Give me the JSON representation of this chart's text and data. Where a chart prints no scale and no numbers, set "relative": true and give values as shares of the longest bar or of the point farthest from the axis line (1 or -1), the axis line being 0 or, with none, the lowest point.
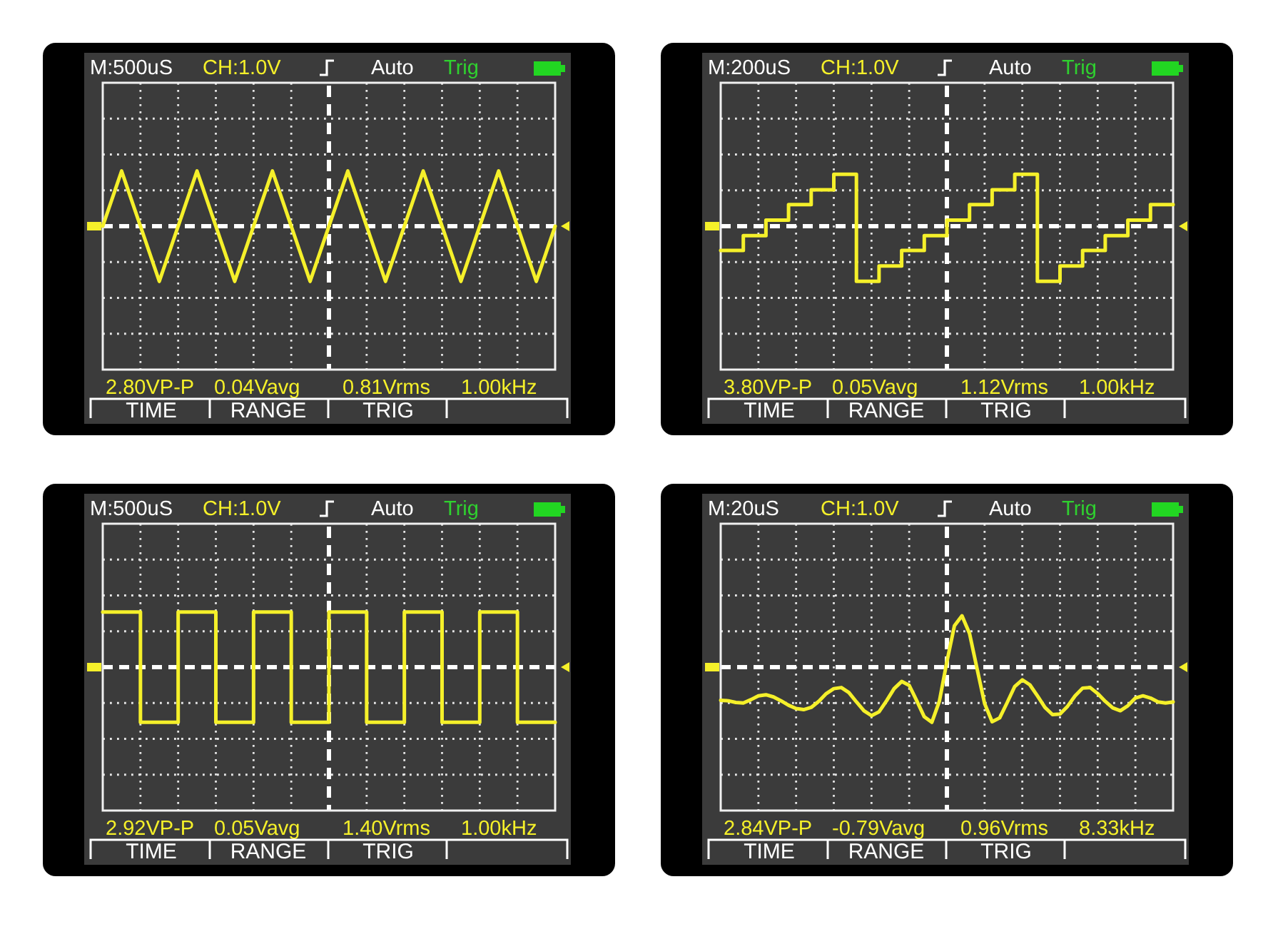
{
  "chart_data": [
    {
      "type": "line",
      "relative": true,
      "grid": true,
      "color": "#f5f02a",
      "ref_lines": [
        {
          "axis": "y",
          "value": 0,
          "color": "#ffffff",
          "line_style": "dashed"
        }
      ],
      "categories": [
        null,
        null,
        null,
        null,
        null,
        null,
        null,
        null,
        null,
        null,
        null,
        null,
        null,
        null,
        null,
        null,
        null,
        null,
        null,
        null,
        null,
        null,
        null,
        null,
        null
      ],
      "values": [
        0,
        1,
        0,
        -1,
        0,
        1,
        0,
        -1,
        0,
        1,
        0,
        -1,
        0,
        1,
        0,
        -1,
        0,
        1,
        0,
        -1,
        0,
        1,
        0,
        -1,
        0
      ],
      "annotations": [
        "M:500uS",
        "CH:1.0V",
        "Auto",
        "Trig",
        "2.80VP-P",
        "0.04Vavg",
        "0.81Vrms",
        "1.00kHz",
        "TIME",
        "RANGE",
        "TRIG"
      ]
    },
    {
      "type": "step",
      "relative": true,
      "grid": true,
      "color": "#f5f02a",
      "ref_lines": [
        {
          "axis": "y",
          "value": 0,
          "color": "#ffffff",
          "line_style": "dashed"
        }
      ],
      "categories": [
        null,
        null,
        null,
        null,
        null,
        null,
        null,
        null,
        null,
        null,
        null,
        null,
        null,
        null,
        null,
        null,
        null,
        null,
        null,
        null,
        null
      ],
      "values": [
        -0.44,
        -0.17,
        0.11,
        0.39,
        0.66,
        0.94,
        -1,
        -0.72,
        -0.44,
        -0.17,
        0.11,
        0.39,
        0.66,
        0.94,
        -1,
        -0.72,
        -0.44,
        -0.17,
        0.11,
        0.39,
        0.39
      ],
      "annotations": [
        "M:200uS",
        "CH:1.0V",
        "Auto",
        "Trig",
        "3.80VP-P",
        "0.05Vavg",
        "1.12Vrms",
        "1.00kHz",
        "TIME",
        "RANGE",
        "TRIG"
      ]
    },
    {
      "type": "step",
      "relative": true,
      "grid": true,
      "color": "#f5f02a",
      "ref_lines": [
        {
          "axis": "y",
          "value": 0,
          "color": "#ffffff",
          "line_style": "dashed"
        }
      ],
      "categories": [
        null,
        null,
        null,
        null,
        null,
        null,
        null,
        null,
        null,
        null,
        null,
        null,
        null
      ],
      "values": [
        1,
        -1,
        1,
        -1,
        1,
        -1,
        1,
        -1,
        1,
        -1,
        1,
        -1,
        -1
      ],
      "annotations": [
        "M:500uS",
        "CH:1.0V",
        "Auto",
        "Trig",
        "2.92VP-P",
        "0.05Vavg",
        "1.40Vrms",
        "1.00kHz",
        "TIME",
        "RANGE",
        "TRIG"
      ]
    },
    {
      "type": "line",
      "relative": true,
      "grid": true,
      "color": "#f5f02a",
      "ref_lines": [
        {
          "axis": "y",
          "value": 0,
          "color": "#ffffff",
          "line_style": "dashed"
        }
      ],
      "categories": [
        null,
        null,
        null,
        null,
        null,
        null,
        null,
        null,
        null,
        null,
        null,
        null,
        null,
        null,
        null,
        null,
        null,
        null,
        null,
        null,
        null,
        null,
        null,
        null,
        null,
        null,
        null,
        null,
        null,
        null,
        null,
        null,
        null,
        null,
        null,
        null,
        null,
        null,
        null,
        null,
        null,
        null,
        null,
        null,
        null,
        null,
        null,
        null,
        null,
        null,
        null,
        null,
        null,
        null,
        null,
        null,
        null,
        null,
        null,
        null,
        null
      ],
      "values": [
        -0.6,
        -0.61,
        -0.64,
        -0.65,
        -0.59,
        -0.52,
        -0.5,
        -0.54,
        -0.61,
        -0.69,
        -0.75,
        -0.77,
        -0.73,
        -0.62,
        -0.48,
        -0.39,
        -0.37,
        -0.46,
        -0.63,
        -0.79,
        -0.88,
        -0.81,
        -0.61,
        -0.39,
        -0.26,
        -0.33,
        -0.61,
        -0.9,
        -1,
        -0.62,
        0.1,
        0.75,
        0.93,
        0.61,
        -0.03,
        -0.66,
        -0.99,
        -0.92,
        -0.64,
        -0.35,
        -0.23,
        -0.32,
        -0.52,
        -0.73,
        -0.86,
        -0.85,
        -0.71,
        -0.52,
        -0.38,
        -0.37,
        -0.48,
        -0.62,
        -0.74,
        -0.79,
        -0.7,
        -0.56,
        -0.52,
        -0.56,
        -0.63,
        -0.65,
        -0.63
      ],
      "annotations": [
        "M:20uS",
        "CH:1.0V",
        "Auto",
        "Trig",
        "2.84VP-P",
        "-0.79Vavg",
        "0.96Vrms",
        "8.33kHz",
        "TIME",
        "RANGE",
        "TRIG"
      ]
    }
  ]
}
